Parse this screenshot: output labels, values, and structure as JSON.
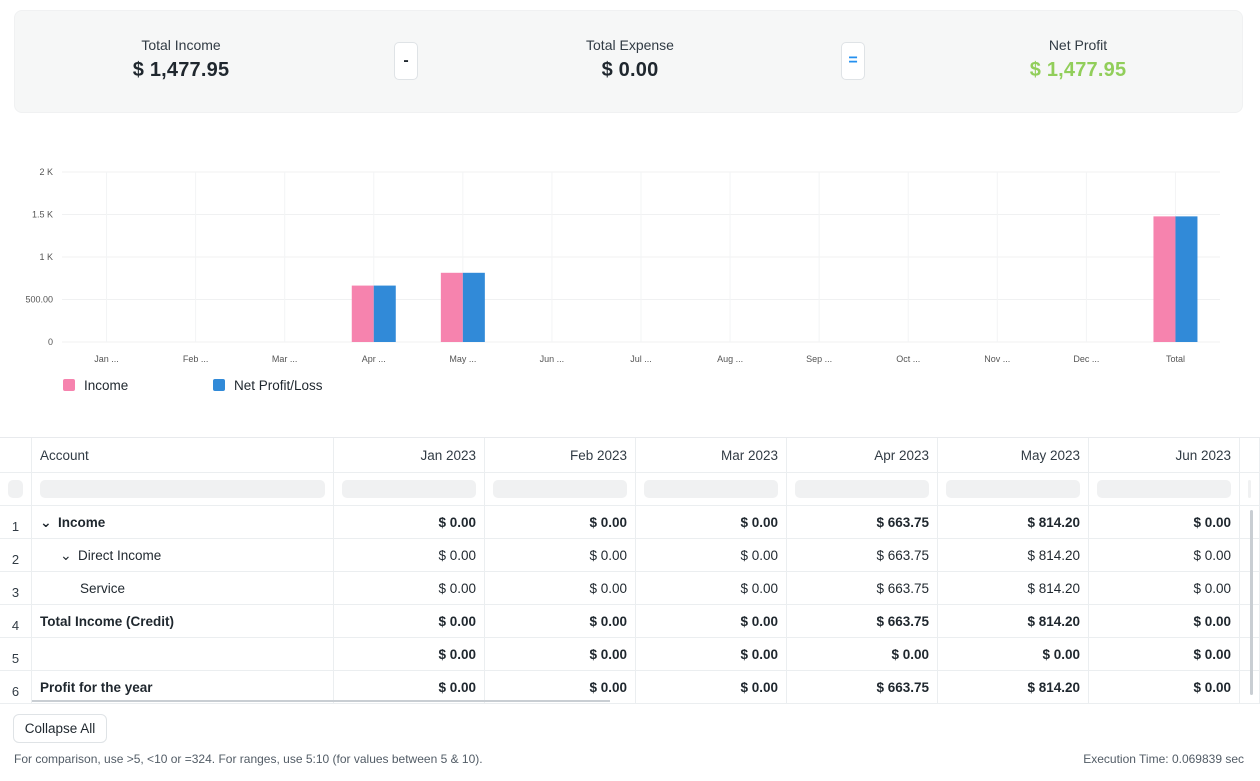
{
  "summary": {
    "income_label": "Total Income",
    "income_value": "$ 1,477.95",
    "minus_label": "-",
    "expense_label": "Total Expense",
    "expense_value": "$ 0.00",
    "equals_label": "=",
    "profit_label": "Net Profit",
    "profit_value": "$ 1,477.95",
    "profit_color": "#91ce5a"
  },
  "chart_data": {
    "type": "bar",
    "categories": [
      "Jan ...",
      "Feb ...",
      "Mar ...",
      "Apr ...",
      "May ...",
      "Jun ...",
      "Jul ...",
      "Aug ...",
      "Sep ...",
      "Oct ...",
      "Nov ...",
      "Dec ...",
      "Total"
    ],
    "series": [
      {
        "name": "Income",
        "color": "#f683ae",
        "values": [
          0,
          0,
          0,
          663.75,
          814.2,
          0,
          0,
          0,
          0,
          0,
          0,
          0,
          1477.95
        ]
      },
      {
        "name": "Net Profit/Loss",
        "color": "#318ad8",
        "values": [
          0,
          0,
          0,
          663.75,
          814.2,
          0,
          0,
          0,
          0,
          0,
          0,
          0,
          1477.95
        ]
      }
    ],
    "yticks": [
      "0",
      "500.00",
      "1 K",
      "1.5 K",
      "2 K"
    ],
    "ylim": [
      0,
      2000
    ],
    "grid": true,
    "legend": "bottom-left"
  },
  "table": {
    "headers": [
      "Account",
      "Jan 2023",
      "Feb 2023",
      "Mar 2023",
      "Apr 2023",
      "May 2023",
      "Jun 2023"
    ],
    "rows": [
      {
        "num": "1",
        "account": "Income",
        "bold": true,
        "chevron": true,
        "indent": 0,
        "values": [
          "$ 0.00",
          "$ 0.00",
          "$ 0.00",
          "$ 663.75",
          "$ 814.20",
          "$ 0.00"
        ]
      },
      {
        "num": "2",
        "account": "Direct Income",
        "bold": false,
        "chevron": true,
        "indent": 1,
        "values": [
          "$ 0.00",
          "$ 0.00",
          "$ 0.00",
          "$ 663.75",
          "$ 814.20",
          "$ 0.00"
        ]
      },
      {
        "num": "3",
        "account": "Service",
        "bold": false,
        "chevron": false,
        "indent": 2,
        "values": [
          "$ 0.00",
          "$ 0.00",
          "$ 0.00",
          "$ 663.75",
          "$ 814.20",
          "$ 0.00"
        ]
      },
      {
        "num": "4",
        "account": "Total Income (Credit)",
        "bold": true,
        "chevron": false,
        "indent": 0,
        "values": [
          "$ 0.00",
          "$ 0.00",
          "$ 0.00",
          "$ 663.75",
          "$ 814.20",
          "$ 0.00"
        ]
      },
      {
        "num": "5",
        "account": "",
        "bold": true,
        "chevron": false,
        "indent": 0,
        "values": [
          "$ 0.00",
          "$ 0.00",
          "$ 0.00",
          "$ 0.00",
          "$ 0.00",
          "$ 0.00"
        ]
      },
      {
        "num": "6",
        "account": "Profit for the year",
        "bold": true,
        "chevron": false,
        "indent": 0,
        "values": [
          "$ 0.00",
          "$ 0.00",
          "$ 0.00",
          "$ 663.75",
          "$ 814.20",
          "$ 0.00"
        ]
      }
    ]
  },
  "footer": {
    "collapse_label": "Collapse All",
    "help_text": "For comparison, use >5, <10 or =324. For ranges, use 5:10 (for values between 5 & 10).",
    "exec_text": "Execution Time: 0.069839 sec"
  }
}
